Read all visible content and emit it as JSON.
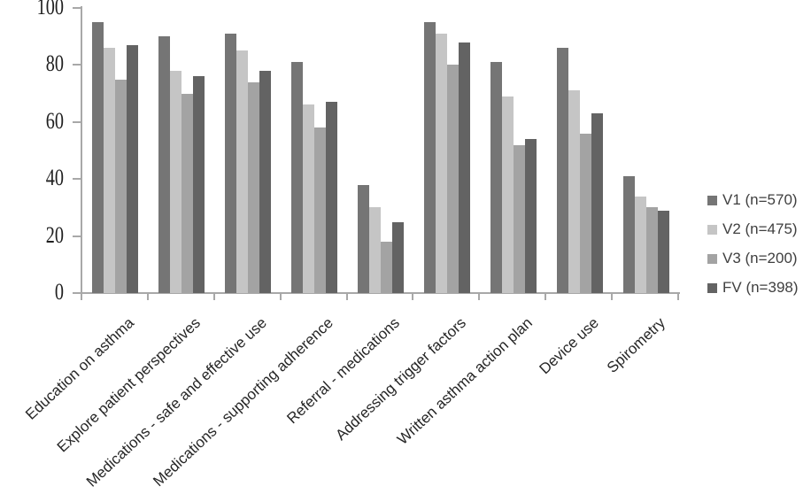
{
  "chart_data": {
    "type": "bar",
    "title": "",
    "xlabel": "",
    "ylabel": "",
    "categories": [
      "Education on asthma",
      "Explore patient perspectives",
      "Medications - safe and effective use",
      "Medications - supporting adherence",
      "Referral - medications",
      "Addressing trigger factors",
      "Written asthma action plan",
      "Device use",
      "Spirometry"
    ],
    "series": [
      {
        "name": "V1 (n=570)",
        "color": "#757575",
        "values": [
          95,
          90,
          91,
          81,
          38,
          95,
          81,
          86,
          41
        ]
      },
      {
        "name": "V2 (n=475)",
        "color": "#c5c5c5",
        "values": [
          86,
          78,
          85,
          66,
          30,
          91,
          69,
          71,
          34
        ]
      },
      {
        "name": "V3 (n=200)",
        "color": "#a3a3a3",
        "values": [
          75,
          70,
          74,
          58,
          18,
          80,
          52,
          56,
          30
        ]
      },
      {
        "name": "FV (n=398)",
        "color": "#636363",
        "values": [
          87,
          76,
          78,
          67,
          25,
          88,
          54,
          63,
          29
        ]
      }
    ],
    "ylim": [
      0,
      100
    ],
    "yticks": [
      0,
      20,
      40,
      60,
      80,
      100
    ],
    "grid": false,
    "legend_position": "right",
    "axis_color": "#a8a8a8",
    "x_label_rotation_deg": -43
  }
}
